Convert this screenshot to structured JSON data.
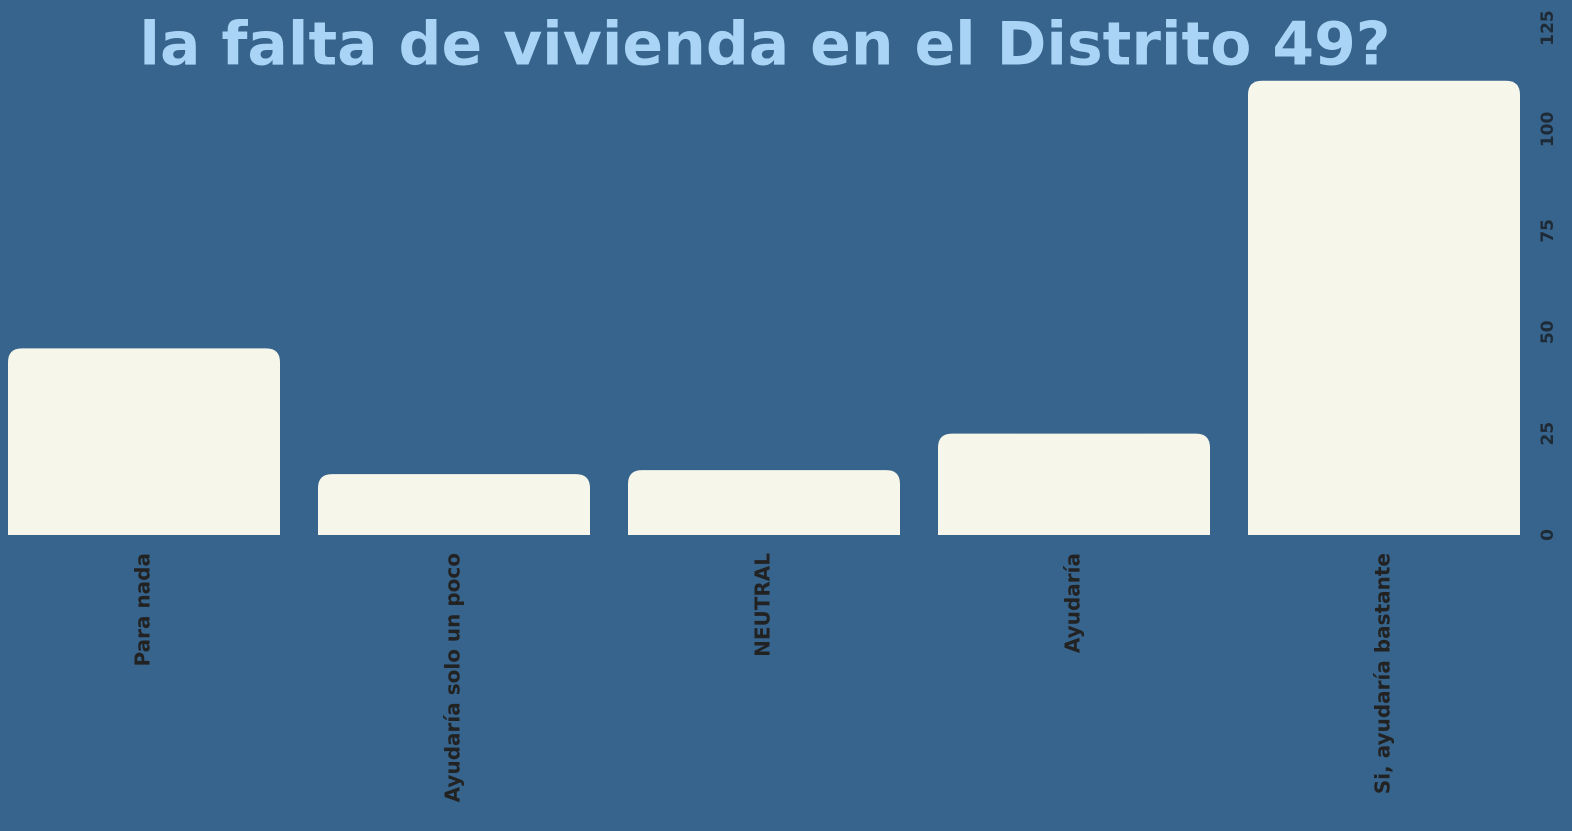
{
  "chart_data": {
    "type": "bar",
    "title": "la falta de vivienda en el Distrito 49?",
    "categories": [
      "Para nada",
      "Ayudaría solo un poco",
      "NEUTRAL",
      "Ayudaría",
      "Si, ayudaría bastante"
    ],
    "values": [
      46,
      15,
      16,
      25,
      112
    ],
    "color": "#f6f6ea",
    "ylim": [
      0,
      125
    ],
    "yticks": [
      0,
      25,
      50,
      75,
      100,
      125
    ],
    "grid": false
  }
}
